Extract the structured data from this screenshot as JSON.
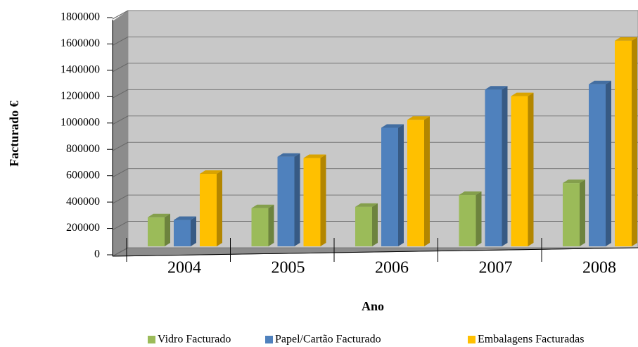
{
  "chart_data": {
    "type": "bar3d",
    "x_label": "Ano",
    "y_label": "Facturado €",
    "categories": [
      "2004",
      "2005",
      "2006",
      "2007",
      "2008"
    ],
    "series": [
      {
        "name": "Vidro Facturado",
        "color": "#9bbb59",
        "values": [
          220000,
          290000,
          300000,
          390000,
          480000
        ]
      },
      {
        "name": "Papel/Cartão Facturado",
        "color": "#4f81bd",
        "values": [
          200000,
          680000,
          900000,
          1190000,
          1230000
        ]
      },
      {
        "name": "Embalagens Facturadas",
        "color": "#ffc000",
        "values": [
          550000,
          670000,
          960000,
          1140000,
          1560000
        ]
      }
    ],
    "ylim": [
      0,
      1800000
    ],
    "yticks": [
      0,
      200000,
      400000,
      600000,
      800000,
      1000000,
      1200000,
      1400000,
      1600000,
      1800000
    ],
    "grid": true,
    "legend": "bottom"
  }
}
